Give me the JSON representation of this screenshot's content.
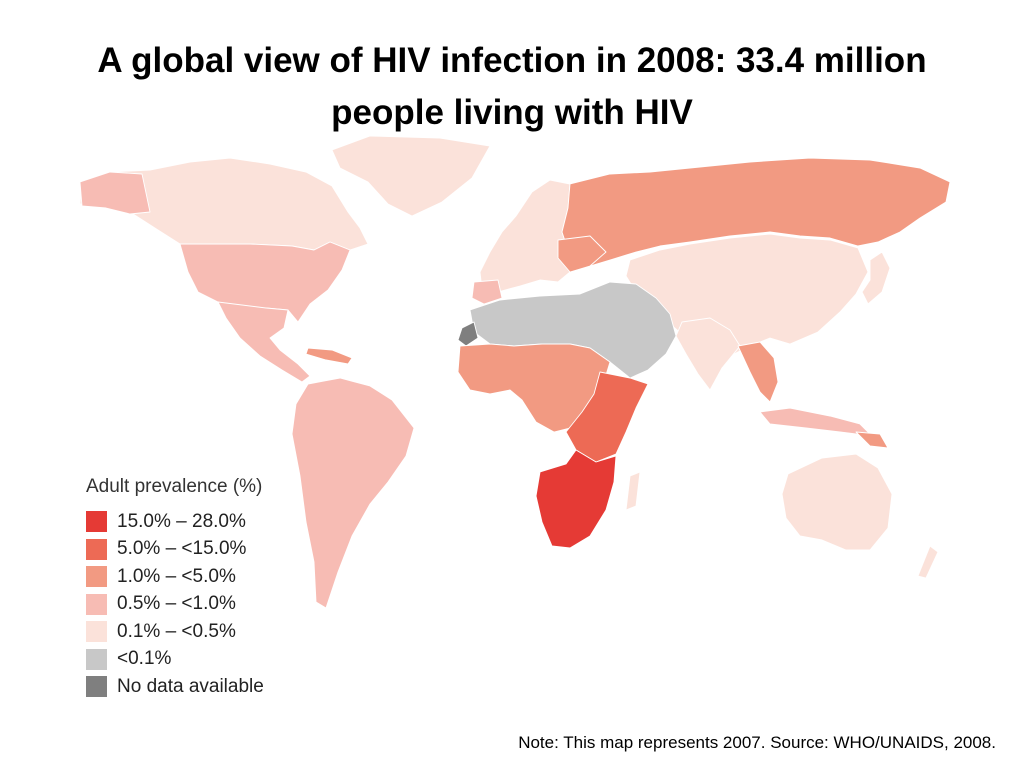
{
  "title": "A global view of HIV infection in 2008: 33.4 million people living with HIV",
  "legend": {
    "title": "Adult prevalence (%)",
    "items": [
      {
        "key": "c15",
        "label": "15.0% – 28.0%",
        "color": "#e53a35"
      },
      {
        "key": "c5",
        "label": "5.0% – <15.0%",
        "color": "#ed6a55"
      },
      {
        "key": "c1",
        "label": "1.0% – <5.0%",
        "color": "#f29a82"
      },
      {
        "key": "c05",
        "label": "0.5% – <1.0%",
        "color": "#f7bcb4"
      },
      {
        "key": "c01",
        "label": "0.1% – <0.5%",
        "color": "#fbe2da"
      },
      {
        "key": "lt01",
        "label": "<0.1%",
        "color": "#c8c8c8"
      },
      {
        "key": "nodata",
        "label": "No data available",
        "color": "#7f7f7f"
      }
    ]
  },
  "map_regions": [
    {
      "region": "North America & Greenland",
      "category": "c01"
    },
    {
      "region": "United States",
      "category": "c05"
    },
    {
      "region": "Mexico & Central America",
      "category": "c05"
    },
    {
      "region": "Caribbean",
      "category": "c1"
    },
    {
      "region": "South America",
      "category": "c05"
    },
    {
      "region": "Western & Central Europe",
      "category": "c01"
    },
    {
      "region": "Eastern Europe & Russia",
      "category": "c1"
    },
    {
      "region": "North Africa & Middle East",
      "category": "lt01"
    },
    {
      "region": "West & Central Africa",
      "category": "c1"
    },
    {
      "region": "East Africa",
      "category": "c5"
    },
    {
      "region": "Southern Africa",
      "category": "c15"
    },
    {
      "region": "Central & East Asia",
      "category": "c01"
    },
    {
      "region": "South-East Asia",
      "category": "c1"
    },
    {
      "region": "Oceania",
      "category": "c01"
    },
    {
      "region": "Western Sahara",
      "category": "nodata"
    }
  ],
  "note": "Note: This map represents 2007. Source: WHO/UNAIDS, 2008."
}
